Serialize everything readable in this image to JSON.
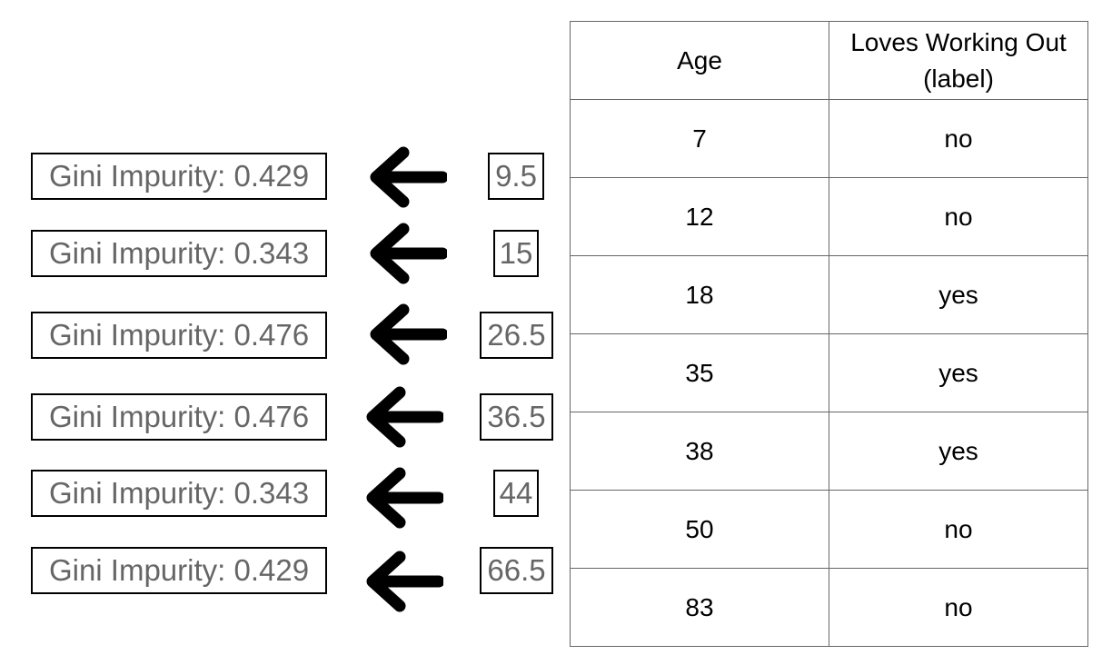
{
  "splits": [
    {
      "gini": "Gini Impurity: 0.429",
      "threshold": "9.5"
    },
    {
      "gini": "Gini Impurity: 0.343",
      "threshold": "15"
    },
    {
      "gini": "Gini Impurity: 0.476",
      "threshold": "26.5"
    },
    {
      "gini": "Gini Impurity: 0.476",
      "threshold": "36.5"
    },
    {
      "gini": "Gini Impurity: 0.343",
      "threshold": "44"
    },
    {
      "gini": "Gini Impurity: 0.429",
      "threshold": "66.5"
    }
  ],
  "table": {
    "headers": [
      "Age",
      "Loves Working Out (label)"
    ],
    "rows": [
      [
        "7",
        "no"
      ],
      [
        "12",
        "no"
      ],
      [
        "18",
        "yes"
      ],
      [
        "35",
        "yes"
      ],
      [
        "38",
        "yes"
      ],
      [
        "50",
        "no"
      ],
      [
        "83",
        "no"
      ]
    ]
  }
}
